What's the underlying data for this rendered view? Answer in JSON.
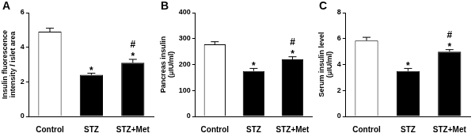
{
  "chart_data": [
    {
      "type": "bar",
      "title": "A",
      "ylabel": [
        "Insulin fluorescence",
        "intensity / islet area"
      ],
      "categories": [
        "Control",
        "STZ",
        "STZ+Met"
      ],
      "values": [
        4.9,
        2.4,
        3.1
      ],
      "errors": [
        0.2,
        0.1,
        0.2
      ],
      "annotations": [
        [],
        [
          "*"
        ],
        [
          "#",
          "*"
        ]
      ],
      "colors": [
        "#ffffff",
        "#000000",
        "#000000"
      ],
      "ylim": [
        0,
        6
      ],
      "yticks": [
        0,
        2,
        4,
        6
      ],
      "grid": false
    },
    {
      "type": "bar",
      "title": "B",
      "ylabel": [
        "Pancreas insulin",
        "(μIU/ml)"
      ],
      "categories": [
        "Control",
        "STZ",
        "STZ+Met"
      ],
      "values": [
        278,
        175,
        220
      ],
      "errors": [
        10,
        10,
        10
      ],
      "annotations": [
        [],
        [
          "*"
        ],
        [
          "#",
          "*"
        ]
      ],
      "colors": [
        "#ffffff",
        "#000000",
        "#000000"
      ],
      "ylim": [
        0,
        400
      ],
      "yticks": [
        0,
        100,
        200,
        300,
        400
      ],
      "grid": false
    },
    {
      "type": "bar",
      "title": "C",
      "ylabel": [
        "Serum insulin level",
        "(μIU/ml)"
      ],
      "categories": [
        "Control",
        "STZ",
        "STZ+Met"
      ],
      "values": [
        5.85,
        3.5,
        5.0
      ],
      "errors": [
        0.25,
        0.2,
        0.15
      ],
      "annotations": [
        [],
        [
          "*"
        ],
        [
          "#",
          "*"
        ]
      ],
      "colors": [
        "#ffffff",
        "#000000",
        "#000000"
      ],
      "ylim": [
        0,
        8
      ],
      "yticks": [
        0,
        2,
        4,
        6,
        8
      ],
      "grid": false
    }
  ]
}
